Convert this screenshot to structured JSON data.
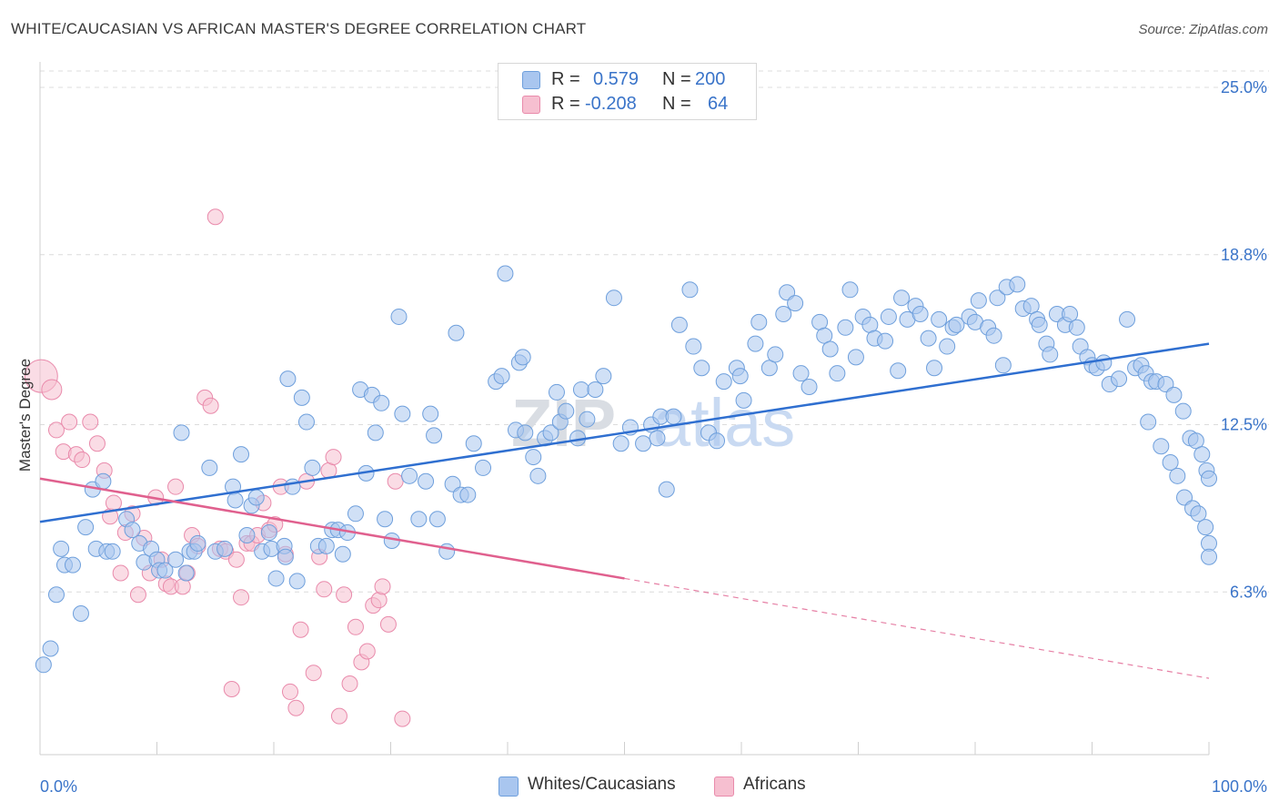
{
  "title": "WHITE/CAUCASIAN VS AFRICAN MASTER'S DEGREE CORRELATION CHART",
  "source": "Source: ZipAtlas.com",
  "colors": {
    "blue_fill": "#a9c6ef",
    "blue_stroke": "#6e9fdc",
    "blue_line": "#2f6fd0",
    "pink_fill": "#f6bfd0",
    "pink_stroke": "#e98aab",
    "pink_line": "#e0608e",
    "value_text": "#3a74c9",
    "grid": "#dcdcdc"
  },
  "legend": {
    "rows": [
      {
        "r_label": "R =",
        "r_value": "0.579",
        "n_label": "N =",
        "n_value": "200",
        "color": "blue"
      },
      {
        "r_label": "R =",
        "r_value": "-0.208",
        "n_label": "N =",
        "n_value": "64",
        "color": "pink"
      }
    ]
  },
  "bottom_legend": {
    "series1": "Whites/Caucasians",
    "series2": "Africans"
  },
  "watermark": {
    "part1": "ZIP",
    "part2": "atlas"
  },
  "chart_data": {
    "type": "scatter",
    "title": "WHITE/CAUCASIAN VS AFRICAN MASTER'S DEGREE CORRELATION CHART",
    "xlabel": "",
    "ylabel": "Master's Degree",
    "xlim": [
      0,
      100
    ],
    "ylim": [
      0,
      25
    ],
    "x_tick_labels": [
      "0.0%",
      "100.0%"
    ],
    "y_ticks": [
      6.3,
      12.5,
      18.8,
      25.0
    ],
    "y_tick_labels": [
      "6.3%",
      "12.5%",
      "18.8%",
      "25.0%"
    ],
    "grid": true,
    "legend_position": "top-center",
    "series": [
      {
        "name": "Whites/Caucasians",
        "color": "blue",
        "trend": {
          "x": [
            0,
            100
          ],
          "y": [
            8.9,
            15.5
          ],
          "style": "solid"
        },
        "points": [
          [
            0.3,
            3.6
          ],
          [
            0.9,
            4.2
          ],
          [
            1.4,
            6.2
          ],
          [
            1.8,
            7.9
          ],
          [
            2.1,
            7.3
          ],
          [
            2.8,
            7.3
          ],
          [
            3.5,
            5.5
          ],
          [
            3.9,
            8.7
          ],
          [
            4.5,
            10.1
          ],
          [
            4.8,
            7.9
          ],
          [
            5.4,
            10.4
          ],
          [
            5.7,
            7.8
          ],
          [
            6.2,
            7.8
          ],
          [
            7.4,
            9.0
          ],
          [
            7.9,
            8.6
          ],
          [
            8.5,
            8.1
          ],
          [
            8.9,
            7.4
          ],
          [
            9.5,
            7.9
          ],
          [
            10.0,
            7.5
          ],
          [
            10.2,
            7.1
          ],
          [
            10.7,
            7.1
          ],
          [
            11.6,
            7.5
          ],
          [
            12.1,
            12.2
          ],
          [
            12.5,
            7.0
          ],
          [
            12.8,
            7.8
          ],
          [
            13.2,
            7.8
          ],
          [
            13.5,
            8.1
          ],
          [
            14.5,
            10.9
          ],
          [
            15.0,
            7.8
          ],
          [
            15.8,
            7.9
          ],
          [
            16.5,
            10.2
          ],
          [
            16.7,
            9.7
          ],
          [
            17.2,
            11.4
          ],
          [
            17.7,
            8.4
          ],
          [
            18.1,
            9.5
          ],
          [
            18.5,
            9.8
          ],
          [
            19.0,
            7.8
          ],
          [
            19.6,
            8.5
          ],
          [
            19.8,
            7.9
          ],
          [
            20.2,
            6.8
          ],
          [
            20.9,
            8.0
          ],
          [
            21.0,
            7.6
          ],
          [
            21.2,
            14.2
          ],
          [
            21.6,
            10.2
          ],
          [
            22.0,
            6.7
          ],
          [
            22.4,
            13.5
          ],
          [
            22.8,
            12.6
          ],
          [
            23.3,
            10.9
          ],
          [
            23.8,
            8.0
          ],
          [
            24.5,
            8.0
          ],
          [
            25.0,
            8.6
          ],
          [
            25.5,
            8.6
          ],
          [
            25.9,
            7.7
          ],
          [
            26.3,
            8.5
          ],
          [
            27.0,
            9.2
          ],
          [
            27.4,
            13.8
          ],
          [
            27.9,
            10.7
          ],
          [
            28.4,
            13.6
          ],
          [
            28.7,
            12.2
          ],
          [
            29.2,
            13.3
          ],
          [
            29.5,
            9.0
          ],
          [
            30.1,
            8.2
          ],
          [
            30.7,
            16.5
          ],
          [
            31.0,
            12.9
          ],
          [
            31.6,
            10.6
          ],
          [
            32.4,
            9.0
          ],
          [
            33.0,
            10.4
          ],
          [
            33.4,
            12.9
          ],
          [
            33.7,
            12.1
          ],
          [
            34.0,
            9.0
          ],
          [
            34.8,
            7.8
          ],
          [
            35.3,
            10.3
          ],
          [
            35.6,
            15.9
          ],
          [
            36.0,
            9.9
          ],
          [
            36.6,
            9.9
          ],
          [
            37.1,
            11.8
          ],
          [
            37.9,
            10.9
          ],
          [
            39.0,
            14.1
          ],
          [
            39.5,
            14.3
          ],
          [
            39.8,
            18.1
          ],
          [
            40.7,
            12.3
          ],
          [
            41.0,
            14.8
          ],
          [
            41.3,
            15.0
          ],
          [
            41.5,
            12.2
          ],
          [
            42.2,
            11.3
          ],
          [
            42.6,
            10.6
          ],
          [
            43.2,
            12.0
          ],
          [
            43.7,
            12.2
          ],
          [
            44.2,
            13.7
          ],
          [
            44.5,
            12.6
          ],
          [
            45.0,
            13.0
          ],
          [
            46.0,
            12.0
          ],
          [
            46.3,
            13.8
          ],
          [
            46.8,
            12.7
          ],
          [
            47.5,
            13.8
          ],
          [
            48.2,
            14.3
          ],
          [
            49.1,
            17.2
          ],
          [
            49.7,
            11.8
          ],
          [
            50.5,
            12.4
          ],
          [
            51.6,
            11.8
          ],
          [
            52.3,
            12.5
          ],
          [
            52.8,
            12.0
          ],
          [
            53.1,
            12.8
          ],
          [
            53.6,
            10.1
          ],
          [
            54.2,
            12.8
          ],
          [
            54.7,
            16.2
          ],
          [
            55.6,
            17.5
          ],
          [
            55.9,
            15.4
          ],
          [
            56.6,
            14.6
          ],
          [
            57.2,
            12.2
          ],
          [
            57.9,
            11.9
          ],
          [
            58.5,
            14.1
          ],
          [
            59.6,
            14.6
          ],
          [
            59.9,
            14.3
          ],
          [
            60.2,
            13.4
          ],
          [
            61.2,
            15.5
          ],
          [
            61.5,
            16.3
          ],
          [
            62.4,
            14.6
          ],
          [
            62.9,
            15.1
          ],
          [
            63.6,
            16.6
          ],
          [
            63.9,
            17.4
          ],
          [
            64.6,
            17.0
          ],
          [
            65.1,
            14.4
          ],
          [
            65.8,
            13.9
          ],
          [
            66.7,
            16.3
          ],
          [
            67.1,
            15.8
          ],
          [
            67.6,
            15.3
          ],
          [
            68.2,
            14.4
          ],
          [
            68.9,
            16.1
          ],
          [
            69.3,
            17.5
          ],
          [
            69.8,
            15.0
          ],
          [
            70.4,
            16.5
          ],
          [
            71.0,
            16.2
          ],
          [
            71.4,
            15.7
          ],
          [
            72.3,
            15.6
          ],
          [
            72.6,
            16.5
          ],
          [
            73.4,
            14.5
          ],
          [
            73.7,
            17.2
          ],
          [
            74.2,
            16.4
          ],
          [
            74.9,
            16.9
          ],
          [
            75.3,
            16.6
          ],
          [
            76.0,
            15.7
          ],
          [
            76.5,
            14.6
          ],
          [
            76.9,
            16.4
          ],
          [
            77.6,
            15.4
          ],
          [
            78.1,
            16.1
          ],
          [
            78.4,
            16.2
          ],
          [
            79.5,
            16.5
          ],
          [
            80.0,
            16.3
          ],
          [
            80.3,
            17.1
          ],
          [
            81.1,
            16.1
          ],
          [
            81.6,
            15.8
          ],
          [
            81.9,
            17.2
          ],
          [
            82.4,
            14.7
          ],
          [
            82.7,
            17.6
          ],
          [
            83.6,
            17.7
          ],
          [
            84.1,
            16.8
          ],
          [
            84.8,
            16.9
          ],
          [
            85.3,
            16.4
          ],
          [
            85.5,
            16.2
          ],
          [
            86.1,
            15.5
          ],
          [
            86.4,
            15.1
          ],
          [
            87.0,
            16.6
          ],
          [
            87.7,
            16.2
          ],
          [
            88.1,
            16.6
          ],
          [
            88.7,
            16.1
          ],
          [
            89.0,
            15.4
          ],
          [
            89.6,
            15.0
          ],
          [
            90.0,
            14.7
          ],
          [
            90.4,
            14.6
          ],
          [
            91.0,
            14.8
          ],
          [
            91.5,
            14.0
          ],
          [
            92.3,
            14.2
          ],
          [
            93.0,
            16.4
          ],
          [
            93.7,
            14.6
          ],
          [
            94.2,
            14.7
          ],
          [
            94.6,
            14.4
          ],
          [
            95.1,
            14.1
          ],
          [
            95.5,
            14.1
          ],
          [
            96.3,
            14.0
          ],
          [
            97.0,
            13.6
          ],
          [
            97.8,
            13.0
          ],
          [
            98.4,
            12.0
          ],
          [
            98.9,
            11.9
          ],
          [
            99.4,
            11.4
          ],
          [
            99.8,
            10.8
          ],
          [
            100.0,
            10.5
          ],
          [
            94.8,
            12.6
          ],
          [
            95.9,
            11.7
          ],
          [
            96.7,
            11.1
          ],
          [
            97.3,
            10.6
          ],
          [
            97.9,
            9.8
          ],
          [
            98.6,
            9.4
          ],
          [
            99.1,
            9.2
          ],
          [
            99.7,
            8.7
          ],
          [
            100.0,
            8.1
          ],
          [
            100.0,
            7.6
          ]
        ]
      },
      {
        "name": "Africans",
        "color": "pink",
        "trend": {
          "x": [
            0,
            50
          ],
          "y": [
            10.5,
            6.8
          ],
          "style": "solid",
          "extension": {
            "x": [
              50,
              100
            ],
            "y": [
              6.8,
              3.1
            ],
            "style": "dashed"
          }
        },
        "points": [
          [
            0.1,
            14.3
          ],
          [
            1.0,
            13.8
          ],
          [
            1.4,
            12.3
          ],
          [
            2.0,
            11.5
          ],
          [
            2.5,
            12.6
          ],
          [
            3.1,
            11.4
          ],
          [
            3.6,
            11.2
          ],
          [
            4.3,
            12.6
          ],
          [
            4.9,
            11.8
          ],
          [
            5.5,
            10.8
          ],
          [
            6.0,
            9.1
          ],
          [
            6.3,
            9.6
          ],
          [
            6.9,
            7.0
          ],
          [
            7.3,
            8.5
          ],
          [
            7.9,
            9.2
          ],
          [
            8.4,
            6.2
          ],
          [
            8.9,
            8.3
          ],
          [
            9.4,
            7.0
          ],
          [
            9.9,
            9.8
          ],
          [
            10.4,
            7.5
          ],
          [
            10.8,
            6.6
          ],
          [
            11.2,
            6.5
          ],
          [
            11.6,
            10.2
          ],
          [
            12.2,
            6.5
          ],
          [
            12.6,
            7.0
          ],
          [
            13.0,
            8.4
          ],
          [
            13.5,
            8.0
          ],
          [
            14.1,
            13.5
          ],
          [
            14.6,
            13.2
          ],
          [
            15.0,
            20.2
          ],
          [
            15.4,
            7.9
          ],
          [
            15.9,
            7.8
          ],
          [
            16.4,
            2.7
          ],
          [
            16.8,
            7.5
          ],
          [
            17.2,
            6.1
          ],
          [
            17.7,
            8.1
          ],
          [
            18.1,
            8.1
          ],
          [
            18.6,
            8.4
          ],
          [
            19.1,
            9.6
          ],
          [
            19.6,
            8.6
          ],
          [
            20.1,
            8.8
          ],
          [
            20.6,
            10.2
          ],
          [
            21.0,
            7.7
          ],
          [
            21.4,
            2.6
          ],
          [
            21.9,
            2.0
          ],
          [
            22.3,
            4.9
          ],
          [
            22.8,
            10.4
          ],
          [
            23.4,
            3.3
          ],
          [
            23.9,
            7.6
          ],
          [
            24.3,
            6.4
          ],
          [
            24.7,
            10.8
          ],
          [
            25.1,
            11.3
          ],
          [
            25.6,
            1.7
          ],
          [
            26.0,
            6.2
          ],
          [
            26.5,
            2.9
          ],
          [
            27.0,
            5.0
          ],
          [
            27.5,
            3.7
          ],
          [
            28.0,
            4.1
          ],
          [
            28.5,
            5.8
          ],
          [
            29.0,
            6.0
          ],
          [
            29.3,
            6.5
          ],
          [
            29.8,
            5.1
          ],
          [
            30.4,
            10.4
          ],
          [
            31.0,
            1.6
          ]
        ]
      }
    ]
  }
}
